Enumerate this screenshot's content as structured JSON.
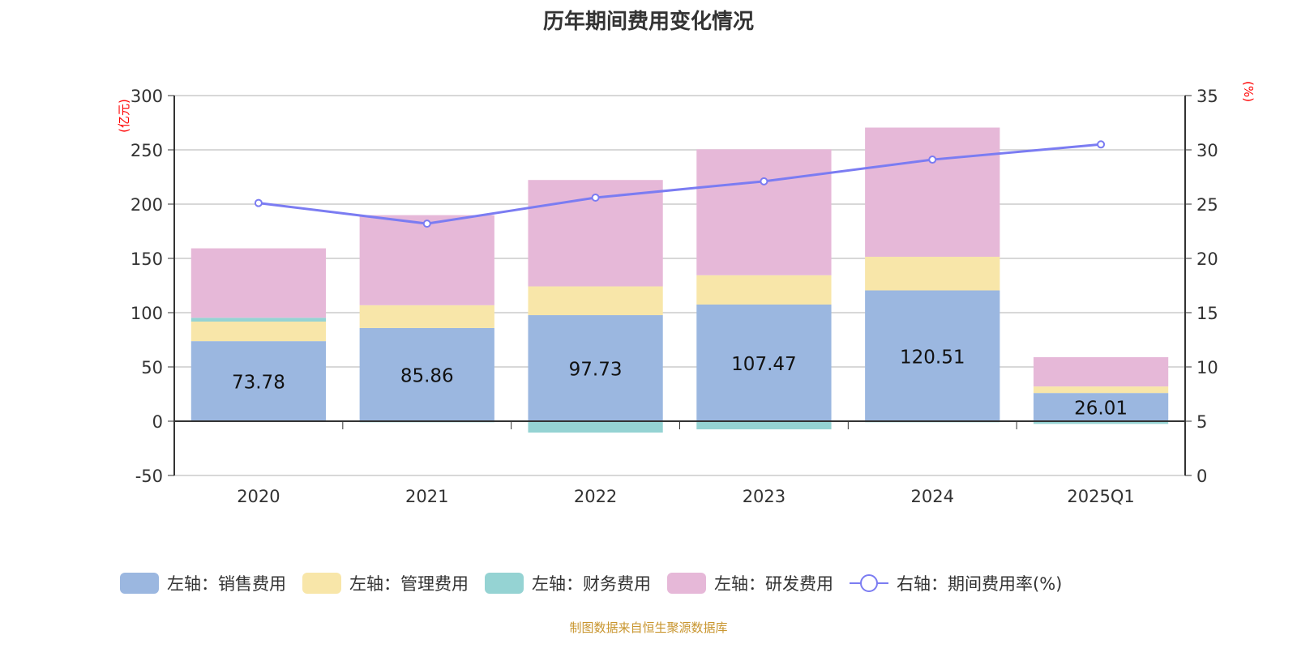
{
  "chart_data": {
    "type": "bar",
    "title": "历年期间费用变化情况",
    "categories": [
      "2020",
      "2021",
      "2022",
      "2023",
      "2024",
      "2025Q1"
    ],
    "left_axis": {
      "label": "(亿元)",
      "ylim": [
        -50,
        300
      ],
      "ticks": [
        -50,
        0,
        50,
        100,
        150,
        200,
        250,
        300
      ]
    },
    "right_axis": {
      "label": "(%)",
      "ylim": [
        0,
        35
      ],
      "ticks": [
        0,
        5,
        10,
        15,
        20,
        25,
        30,
        35
      ]
    },
    "grid": true,
    "legend_position": "bottom",
    "series": [
      {
        "name": "左轴：销售费用",
        "type": "bar",
        "stack": true,
        "color": "#9bb7e0",
        "values": [
          73.78,
          85.86,
          97.73,
          107.47,
          120.51,
          26.01
        ],
        "labels": [
          "73.78",
          "85.86",
          "97.73",
          "107.47",
          "120.51",
          "26.01"
        ]
      },
      {
        "name": "左轴：管理费用",
        "type": "bar",
        "stack": true,
        "color": "#f8e6a9",
        "values": [
          18,
          21,
          26.5,
          27,
          31,
          6
        ]
      },
      {
        "name": "左轴：财务费用",
        "type": "bar",
        "stack": true,
        "color": "#95d3d3",
        "values": [
          3.5,
          -1,
          -10.5,
          -7.5,
          -1,
          -2.5
        ]
      },
      {
        "name": "左轴：研发费用",
        "type": "bar",
        "stack": true,
        "color": "#e6b8d8",
        "values": [
          64,
          83,
          98,
          116,
          119,
          27
        ]
      },
      {
        "name": "右轴：期间费用率(%)",
        "type": "line",
        "axis": "right",
        "color": "#7b7cf2",
        "values": [
          25.1,
          23.2,
          25.6,
          27.1,
          29.1,
          30.5
        ]
      }
    ]
  },
  "footer": "制图数据来自恒生聚源数据库"
}
